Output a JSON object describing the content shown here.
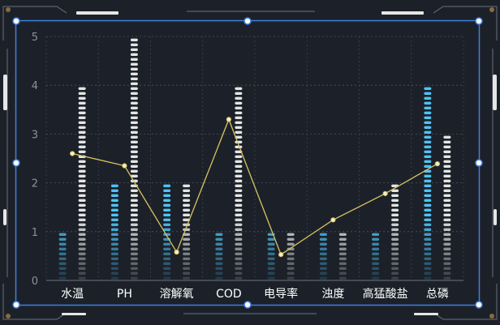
{
  "chart_data": {
    "type": "bar",
    "categories": [
      "水温",
      "PH",
      "溶解氧",
      "COD",
      "电导率",
      "浊度",
      "高猛酸盐",
      "总磷"
    ],
    "series": [
      {
        "type": "bar",
        "values": [
          1,
          2,
          2,
          1,
          1,
          1,
          1,
          4
        ]
      },
      {
        "type": "bar",
        "values": [
          4,
          5,
          2,
          4,
          1,
          1,
          2,
          3
        ]
      },
      {
        "type": "line",
        "values": [
          2.6,
          2.35,
          0.58,
          3.3,
          0.53,
          1.24,
          1.78,
          2.39
        ]
      }
    ],
    "ylim": [
      0,
      5
    ],
    "yticks": [
      0,
      1,
      2,
      3,
      4,
      5
    ],
    "grid": true,
    "colors": {
      "background": "#1c2129",
      "bar_a": "#4fc3f7",
      "bar_b": "#e4e4e4",
      "line": "#d9c460",
      "frame": "#3f7fe0",
      "frame_outer": "#5a636e",
      "axis_text": "#8a919c",
      "category_text": "#ffffff"
    }
  }
}
